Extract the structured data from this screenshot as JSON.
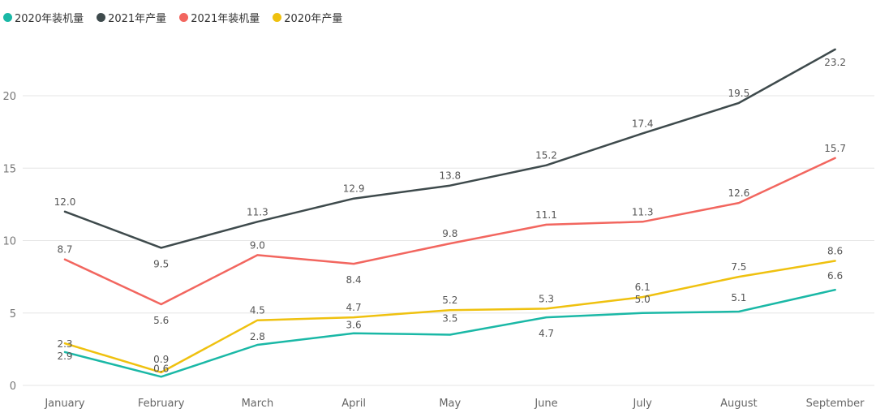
{
  "chart_data": {
    "type": "line",
    "title": "",
    "xlabel": "",
    "ylabel": "",
    "categories": [
      "January",
      "February",
      "March",
      "April",
      "May",
      "June",
      "July",
      "August",
      "September"
    ],
    "ylim": [
      0,
      25
    ],
    "yticks": [
      0,
      5,
      10,
      15,
      20
    ],
    "grid": true,
    "legend_position": "top-left",
    "series": [
      {
        "name": "2020年装机量",
        "color": "#1ab8a6",
        "values": [
          2.3,
          0.6,
          2.8,
          3.6,
          3.5,
          4.7,
          5.0,
          5.1,
          6.6
        ],
        "labels": [
          "2.3",
          "0.6",
          "2.8",
          "3.6",
          "3.5",
          "4.7",
          "5.0",
          "5.1",
          "6.6"
        ]
      },
      {
        "name": "2021年产量",
        "color": "#3e4a4c",
        "values": [
          12.0,
          9.5,
          11.3,
          12.9,
          13.8,
          15.2,
          17.4,
          19.5,
          23.2
        ],
        "labels": [
          "12.0",
          "9.5",
          "11.3",
          "12.9",
          "13.8",
          "15.2",
          "17.4",
          "19.5",
          "23.2"
        ]
      },
      {
        "name": "2021年装机量",
        "color": "#f2665f",
        "values": [
          8.7,
          5.6,
          9.0,
          8.4,
          9.8,
          11.1,
          11.3,
          12.6,
          15.7
        ],
        "labels": [
          "8.7",
          "5.6",
          "9.0",
          "8.4",
          "9.8",
          "11.1",
          "11.3",
          "12.6",
          "15.7"
        ]
      },
      {
        "name": "2020年产量",
        "color": "#efc10f",
        "values": [
          2.9,
          0.9,
          4.5,
          4.7,
          5.2,
          5.3,
          6.1,
          7.5,
          8.6
        ],
        "labels": [
          "2.9",
          "0.9",
          "4.5",
          "4.7",
          "5.2",
          "5.3",
          "6.1",
          "7.5",
          "8.6"
        ]
      }
    ]
  }
}
